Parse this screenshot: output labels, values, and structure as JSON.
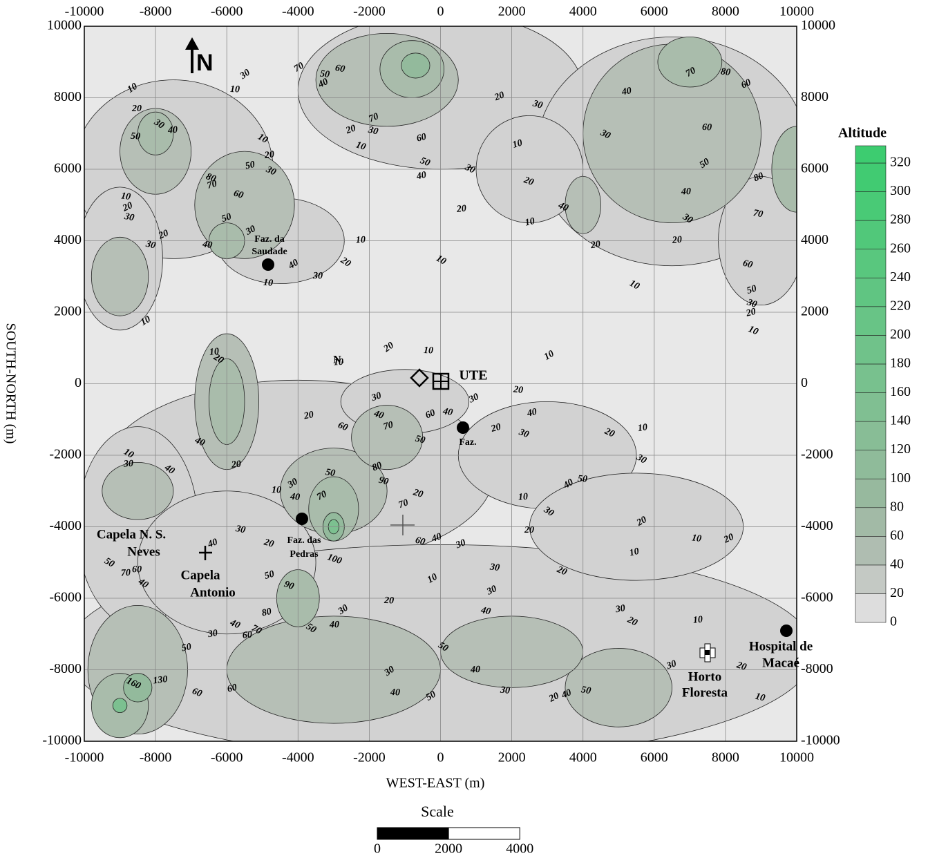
{
  "xlim": [
    -10000,
    10000
  ],
  "ylim": [
    -10000,
    10000
  ],
  "xticks": [
    -10000,
    -8000,
    -6000,
    -4000,
    -2000,
    0,
    2000,
    4000,
    6000,
    8000,
    10000
  ],
  "yticks": [
    -10000,
    -8000,
    -6000,
    -4000,
    -2000,
    0,
    2000,
    4000,
    6000,
    8000,
    10000
  ],
  "x_label": "WEST-EAST (m)",
  "y_label": "SOUTH-NORTH (m)",
  "grid": true,
  "north": "N",
  "legend": {
    "title": "Altitude",
    "levels": [
      0,
      20,
      40,
      60,
      80,
      100,
      120,
      140,
      160,
      180,
      200,
      220,
      240,
      260,
      280,
      300,
      320
    ]
  },
  "scale": {
    "title": "Scale",
    "ticks": [
      0,
      2000,
      4000
    ]
  },
  "places": [
    {
      "lines": [
        "Faz. da",
        "Saudade"
      ]
    },
    {
      "lines": [
        "UTE"
      ]
    },
    {
      "lines": [
        "Faz."
      ]
    },
    {
      "lines": [
        "Faz. das",
        "Pedras"
      ]
    },
    {
      "lines": [
        "Capela N. S.",
        "Neves"
      ]
    },
    {
      "lines": [
        "Capela",
        "Antonio"
      ]
    },
    {
      "lines": [
        "Hospital de",
        "Macaé"
      ]
    },
    {
      "lines": [
        "Horto",
        "Floresta"
      ]
    },
    {
      "lines": [
        "N."
      ]
    }
  ],
  "contour_labels": [
    30,
    10,
    70,
    50,
    40,
    60,
    70,
    30,
    20,
    10,
    60,
    50,
    40,
    30,
    20,
    10,
    10,
    20,
    30,
    40,
    10,
    30,
    40,
    20,
    30,
    50,
    60,
    70,
    80,
    50,
    30,
    20,
    10,
    40,
    30,
    20,
    10,
    50,
    10,
    10,
    20,
    30,
    20,
    30,
    10,
    20,
    10,
    40,
    20,
    10,
    20,
    30,
    40,
    50,
    60,
    70,
    80,
    60,
    70,
    80,
    60,
    50,
    30,
    20,
    10,
    40,
    30,
    10,
    20,
    10,
    20,
    10,
    10,
    20,
    30,
    40,
    60,
    50,
    30,
    40,
    70,
    60,
    20,
    40,
    20,
    10,
    30,
    40,
    10,
    30,
    40,
    70,
    50,
    80,
    90,
    70,
    20,
    20,
    30,
    40,
    20,
    10,
    30,
    10,
    30,
    20,
    40,
    50,
    20,
    10,
    20,
    30,
    40,
    20,
    50,
    90,
    80,
    40,
    30,
    70,
    60,
    50,
    40,
    30,
    20,
    10,
    30,
    30,
    40,
    30,
    60,
    40,
    100,
    10,
    20,
    30,
    20,
    10,
    50,
    40,
    30,
    40,
    50,
    30,
    20,
    50,
    40,
    10,
    30,
    20,
    60,
    60,
    50,
    160,
    130,
    50,
    70,
    40,
    60
  ]
}
